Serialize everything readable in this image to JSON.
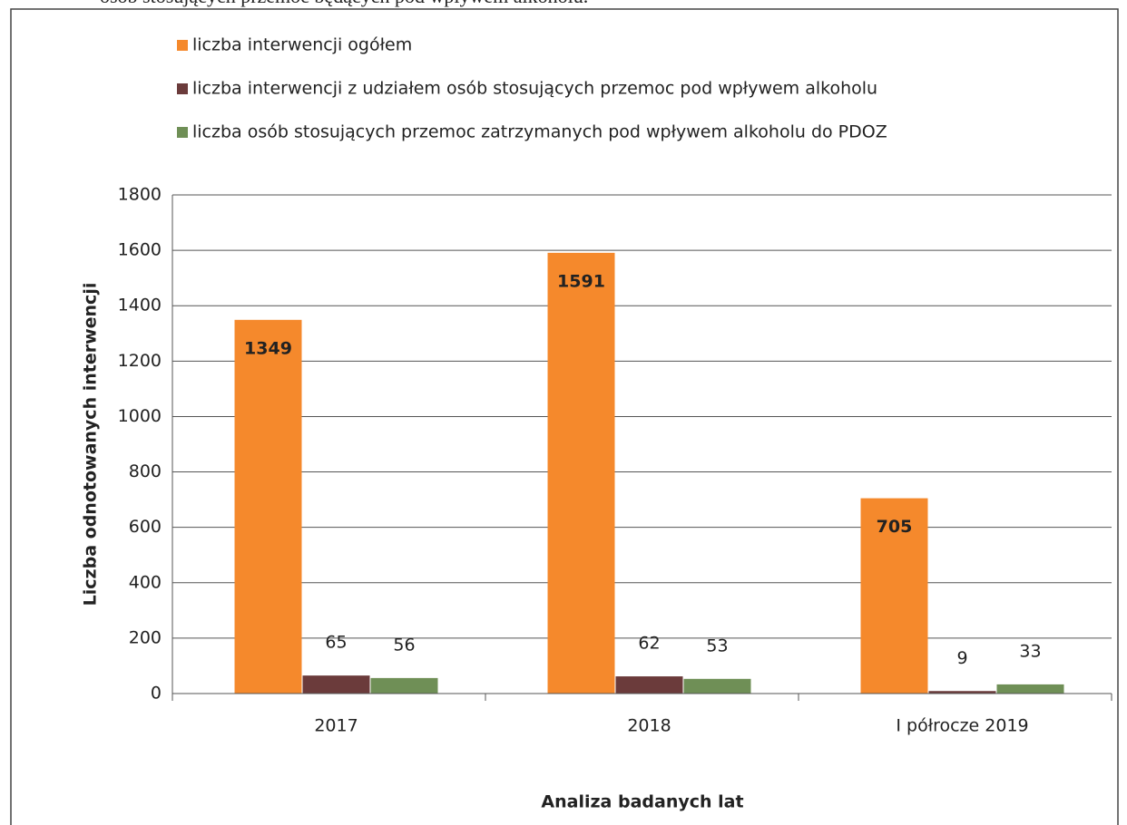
{
  "caption": "osób stosujących przemoc będących pod wpływem alkoholu.",
  "chart_data": {
    "type": "bar",
    "x_label": "Analiza badanych lat",
    "y_label": "Liczba odnotowanych interwencji",
    "categories": [
      "2017",
      "2018",
      "I półrocze 2019"
    ],
    "series": [
      {
        "name": "liczba interwencji ogółem",
        "color": "#f5892c",
        "values": [
          1349,
          1591,
          705
        ]
      },
      {
        "name": "liczba interwencji z udziałem osób stosujących przemoc pod wpływem alkoholu",
        "color": "#6b3b3b",
        "values": [
          65,
          62,
          9
        ]
      },
      {
        "name": "liczba osób stosujących przemoc zatrzymanych pod wpływem alkoholu do PDOZ",
        "color": "#6f8f56",
        "values": [
          56,
          53,
          33
        ]
      }
    ],
    "ylim": [
      0,
      1800
    ],
    "yticks": [
      0,
      200,
      400,
      600,
      800,
      1000,
      1200,
      1400,
      1600,
      1800
    ],
    "grid": true,
    "legend": "top"
  }
}
